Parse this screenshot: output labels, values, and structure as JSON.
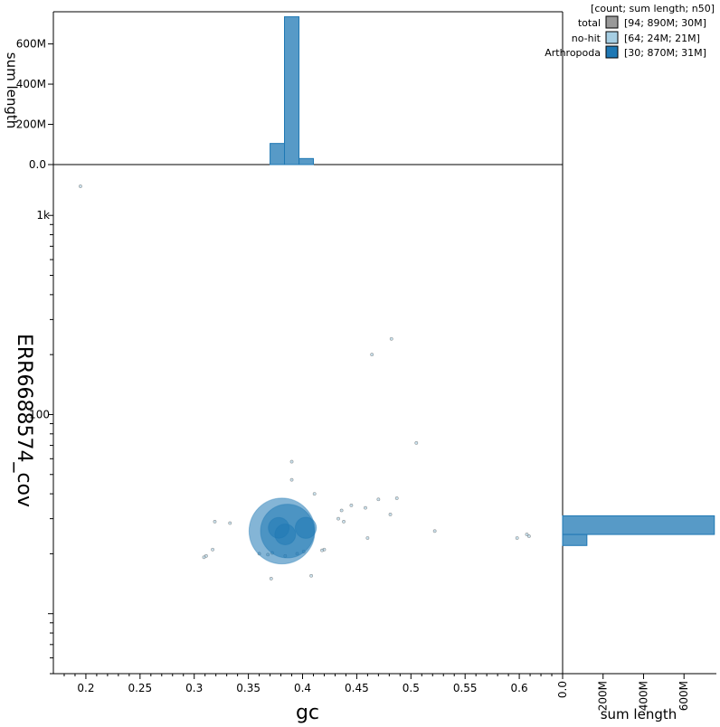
{
  "chart_data": {
    "type": "scatter",
    "xlabel": "gc",
    "ylabel": "ERR6688574_cov",
    "top_hist_ylabel": "sum length",
    "right_hist_xlabel": "sum length",
    "xlim": [
      0.17,
      0.64
    ],
    "ylim_log": [
      5,
      1800
    ],
    "x_ticks": [
      {
        "value": 0.2,
        "label": "0.2"
      },
      {
        "value": 0.25,
        "label": "0.25"
      },
      {
        "value": 0.3,
        "label": "0.3"
      },
      {
        "value": 0.35,
        "label": "0.35"
      },
      {
        "value": 0.4,
        "label": "0.4"
      },
      {
        "value": 0.45,
        "label": "0.45"
      },
      {
        "value": 0.5,
        "label": "0.5"
      },
      {
        "value": 0.55,
        "label": "0.55"
      },
      {
        "value": 0.6,
        "label": "0.6"
      }
    ],
    "y_ticks": [
      {
        "value": 100,
        "label": "100"
      },
      {
        "value": 1000,
        "label": "1k"
      }
    ],
    "top_hist_ticks": [
      {
        "value": 0,
        "label": "0.0"
      },
      {
        "value": 200,
        "label": "200M"
      },
      {
        "value": 400,
        "label": "400M"
      },
      {
        "value": 600,
        "label": "600M"
      }
    ],
    "right_hist_ticks": [
      {
        "value": 0,
        "label": "0.0"
      },
      {
        "value": 200,
        "label": "200M"
      },
      {
        "value": 400,
        "label": "400M"
      },
      {
        "value": 600,
        "label": "600M"
      }
    ],
    "legend": {
      "header": "[count; sum length; n50]",
      "position": "top-right",
      "entries": [
        {
          "name": "total",
          "stats": "[94; 890M; 30M]",
          "color": "#999999"
        },
        {
          "name": "no-hit",
          "stats": "[64; 24M; 21M]",
          "color": "#a6cee3"
        },
        {
          "name": "Arthropoda",
          "stats": "[30; 870M; 31M]",
          "color": "#1f78b4"
        }
      ]
    },
    "colors": {
      "no_hit": "#a6cee3",
      "arthropoda": "#1f78b4",
      "hist": "#1f78b4"
    },
    "top_histogram": {
      "bins": [
        {
          "x0": 0.37,
          "x1": 0.3833,
          "value": 105
        },
        {
          "x0": 0.3833,
          "x1": 0.3967,
          "value": 735
        },
        {
          "x0": 0.3967,
          "x1": 0.41,
          "value": 30
        }
      ]
    },
    "right_histogram": {
      "bins": [
        {
          "y0": 22,
          "y1": 25,
          "value": 120
        },
        {
          "y0": 25,
          "y1": 31,
          "value": 750
        }
      ]
    },
    "series": [
      {
        "name": "no-hit",
        "points": [
          {
            "gc": 0.195,
            "cov": 1400,
            "len": 0.05
          },
          {
            "gc": 0.482,
            "cov": 240,
            "len": 0.05
          },
          {
            "gc": 0.464,
            "cov": 200,
            "len": 0.05
          },
          {
            "gc": 0.505,
            "cov": 72,
            "len": 0.05
          },
          {
            "gc": 0.39,
            "cov": 58,
            "len": 0.05
          },
          {
            "gc": 0.39,
            "cov": 47,
            "len": 0.5
          },
          {
            "gc": 0.411,
            "cov": 40,
            "len": 0.05
          },
          {
            "gc": 0.487,
            "cov": 38,
            "len": 0.05
          },
          {
            "gc": 0.47,
            "cov": 37.5,
            "len": 0.05
          },
          {
            "gc": 0.445,
            "cov": 35,
            "len": 0.1
          },
          {
            "gc": 0.458,
            "cov": 34,
            "len": 0.2
          },
          {
            "gc": 0.436,
            "cov": 33,
            "len": 0.05
          },
          {
            "gc": 0.481,
            "cov": 31.5,
            "len": 0.1
          },
          {
            "gc": 0.433,
            "cov": 30,
            "len": 0.1
          },
          {
            "gc": 0.438,
            "cov": 29,
            "len": 0.2
          },
          {
            "gc": 0.319,
            "cov": 29,
            "len": 0.05
          },
          {
            "gc": 0.333,
            "cov": 28.5,
            "len": 0.05
          },
          {
            "gc": 0.522,
            "cov": 26,
            "len": 0.1
          },
          {
            "gc": 0.607,
            "cov": 25,
            "len": 0.3
          },
          {
            "gc": 0.609,
            "cov": 24.5,
            "len": 0.3
          },
          {
            "gc": 0.46,
            "cov": 24,
            "len": 0.1
          },
          {
            "gc": 0.598,
            "cov": 24,
            "len": 0.4
          },
          {
            "gc": 0.317,
            "cov": 21,
            "len": 0.05
          },
          {
            "gc": 0.42,
            "cov": 21,
            "len": 0.05
          },
          {
            "gc": 0.418,
            "cov": 20.8,
            "len": 0.05
          },
          {
            "gc": 0.36,
            "cov": 20,
            "len": 0.2
          },
          {
            "gc": 0.368,
            "cov": 19.8,
            "len": 0.05
          },
          {
            "gc": 0.311,
            "cov": 19.5,
            "len": 0.05
          },
          {
            "gc": 0.309,
            "cov": 19.2,
            "len": 0.05
          },
          {
            "gc": 0.384,
            "cov": 19.5,
            "len": 0.2
          },
          {
            "gc": 0.372,
            "cov": 20.2,
            "len": 0.1
          },
          {
            "gc": 0.395,
            "cov": 20,
            "len": 0.1
          },
          {
            "gc": 0.401,
            "cov": 20.5,
            "len": 0.05
          },
          {
            "gc": 0.371,
            "cov": 15,
            "len": 0.05
          },
          {
            "gc": 0.408,
            "cov": 15.5,
            "len": 0.05
          }
        ]
      },
      {
        "name": "Arthropoda",
        "points": [
          {
            "gc": 0.381,
            "cov": 26,
            "len": 300
          },
          {
            "gc": 0.386,
            "cov": 26,
            "len": 200
          },
          {
            "gc": 0.403,
            "cov": 27,
            "len": 31
          },
          {
            "gc": 0.384,
            "cov": 25,
            "len": 30
          },
          {
            "gc": 0.378,
            "cov": 27,
            "len": 30
          }
        ]
      }
    ]
  }
}
